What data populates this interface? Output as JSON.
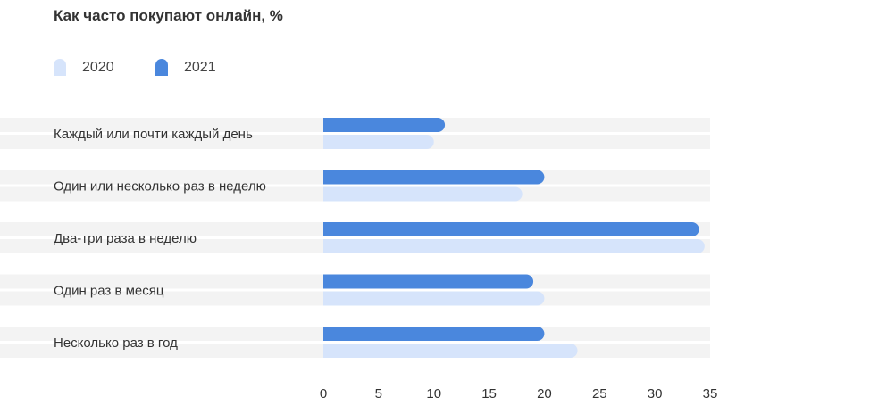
{
  "chart_data": {
    "type": "bar",
    "orientation": "horizontal",
    "title": "Как часто покупают онлайн, %",
    "xlabel": "",
    "ylabel": "",
    "xlim": [
      0,
      35
    ],
    "xticks": [
      0,
      5,
      10,
      15,
      20,
      25,
      30,
      35
    ],
    "legend_position": "top-left",
    "grid": false,
    "categories": [
      "Каждый или почти каждый день",
      "Один или несколько раз в неделю",
      "Два-три раза в неделю",
      "Один раз в месяц",
      "Несколько раз в год"
    ],
    "series": [
      {
        "name": "2021",
        "color": "#4a87dd",
        "values": [
          11,
          20,
          34,
          19,
          20
        ]
      },
      {
        "name": "2020",
        "color": "#d6e4fb",
        "values": [
          10,
          18,
          34.5,
          20,
          23
        ]
      }
    ],
    "band_color": "#f3f3f3"
  }
}
